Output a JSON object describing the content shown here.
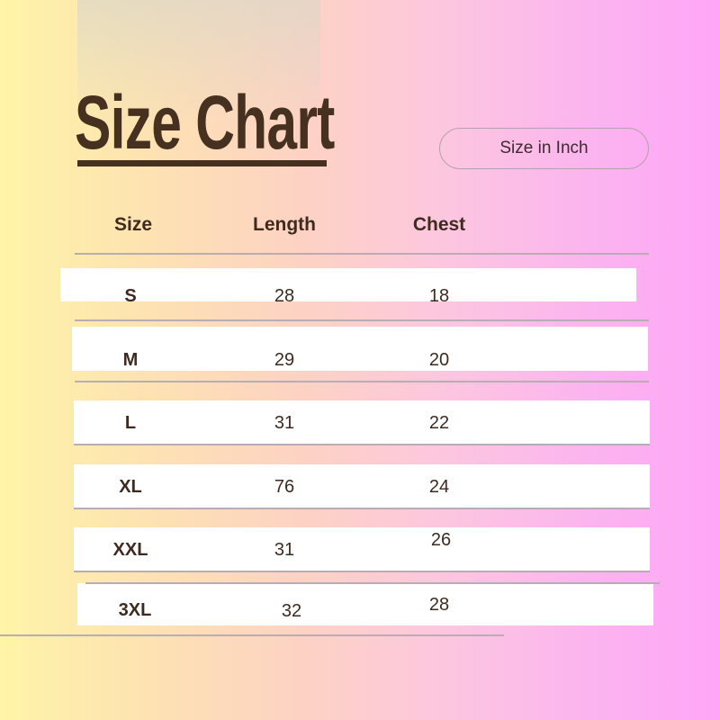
{
  "title": "Size Chart",
  "unit_badge": "Size in Inch",
  "headers": [
    "Size",
    "Length",
    "Chest"
  ],
  "rows": [
    {
      "size": "S",
      "length": "28",
      "chest": "18"
    },
    {
      "size": "M",
      "length": "29",
      "chest": "20"
    },
    {
      "size": "L",
      "length": "31",
      "chest": "22"
    },
    {
      "size": "XL",
      "length": "76",
      "chest": "24"
    },
    {
      "size": "XXL",
      "length": "31",
      "chest": "26"
    },
    {
      "size": "3XL",
      "length": "32",
      "chest": "28"
    }
  ],
  "colors": {
    "text": "#3f2a1f",
    "row_bg": "#ffffff",
    "gradient_left": "#fff4a8",
    "gradient_right": "#ffa6f8"
  }
}
